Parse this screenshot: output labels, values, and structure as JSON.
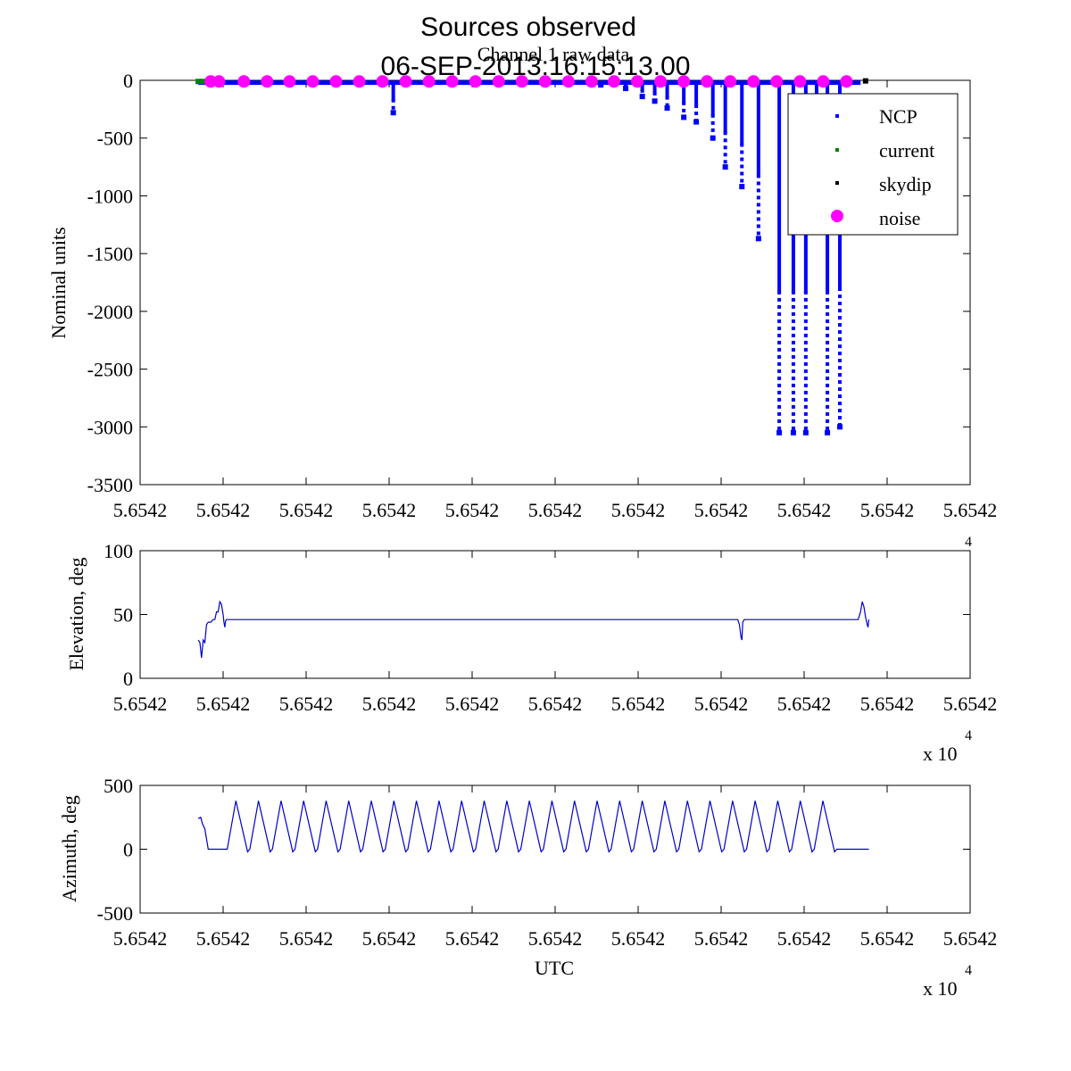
{
  "figure": {
    "title_line1": "Sources observed",
    "title_line2": "06-SEP-2013:16:15:13.00"
  },
  "colors": {
    "ncp": "#0000ff",
    "current": "#008000",
    "skydip": "#000000",
    "noise": "#ff00ff",
    "line": "#0000cc"
  },
  "chart_data": [
    {
      "type": "scatter",
      "title": "Channel 1 raw data",
      "xlabel": "",
      "ylabel": "Nominal units",
      "xlim": [
        0,
        1
      ],
      "ylim": [
        -3500,
        0
      ],
      "xticks": [
        0,
        0.1,
        0.2,
        0.3,
        0.4,
        0.5,
        0.6,
        0.7,
        0.8,
        0.9,
        1.0
      ],
      "xtick_labels": [
        "5.6542",
        "5.6542",
        "5.6542",
        "5.6542",
        "5.6542",
        "5.6542",
        "5.6542",
        "5.6542",
        "5.6542",
        "5.6542",
        "5.6542"
      ],
      "yticks": [
        -3500,
        -3000,
        -2500,
        -2000,
        -1500,
        -1000,
        -500,
        0
      ],
      "ytick_labels": [
        "-3500",
        "-3000",
        "-2500",
        "-2000",
        "-1500",
        "-1000",
        "-500",
        "0"
      ],
      "legend": {
        "position": "top-right",
        "entries": [
          {
            "label": "NCP",
            "series": "ncp"
          },
          {
            "label": "current",
            "series": "current"
          },
          {
            "label": "skydip",
            "series": "skydip"
          },
          {
            "label": "noise",
            "series": "noise"
          }
        ]
      },
      "series": {
        "ncp_base": {
          "x_start": 0.07,
          "x_end": 0.868,
          "y": -20
        },
        "ncp_dips": [
          {
            "x": 0.305,
            "min": -280
          },
          {
            "x": 0.555,
            "min": -40
          },
          {
            "x": 0.585,
            "min": -70
          },
          {
            "x": 0.605,
            "min": -140
          },
          {
            "x": 0.62,
            "min": -180
          },
          {
            "x": 0.635,
            "min": -240
          },
          {
            "x": 0.655,
            "min": -320
          },
          {
            "x": 0.67,
            "min": -360
          },
          {
            "x": 0.69,
            "min": -500
          },
          {
            "x": 0.705,
            "min": -750
          },
          {
            "x": 0.725,
            "min": -920
          },
          {
            "x": 0.745,
            "min": -1370
          },
          {
            "x": 0.77,
            "min": -3050
          },
          {
            "x": 0.787,
            "min": -3050
          },
          {
            "x": 0.802,
            "min": -3050
          },
          {
            "x": 0.815,
            "min": -1000
          },
          {
            "x": 0.828,
            "min": -3050
          },
          {
            "x": 0.843,
            "min": -3000
          }
        ],
        "current": [
          {
            "x": 0.07,
            "y": -10
          },
          {
            "x": 0.075,
            "y": -10
          }
        ],
        "skydip": [
          {
            "x": 0.874,
            "y": -5
          }
        ],
        "noise_x": [
          0.085,
          0.095,
          0.125,
          0.153,
          0.18,
          0.208,
          0.236,
          0.264,
          0.292,
          0.32,
          0.348,
          0.376,
          0.404,
          0.432,
          0.46,
          0.488,
          0.516,
          0.544,
          0.571,
          0.599,
          0.627,
          0.655,
          0.683,
          0.711,
          0.739,
          0.767,
          0.795,
          0.823,
          0.851
        ],
        "noise_y": -10
      }
    },
    {
      "type": "line",
      "xlabel": "",
      "ylabel": "Elevation, deg",
      "xlim": [
        0,
        1
      ],
      "ylim": [
        0,
        100
      ],
      "xticks": [
        0,
        0.1,
        0.2,
        0.3,
        0.4,
        0.5,
        0.6,
        0.7,
        0.8,
        0.9,
        1.0
      ],
      "xtick_labels": [
        "5.6542",
        "5.6542",
        "5.6542",
        "5.6542",
        "5.6542",
        "5.6542",
        "5.6542",
        "5.6542",
        "5.6542",
        "5.6542",
        "5.6542"
      ],
      "yticks": [
        0,
        50,
        100
      ],
      "ytick_labels": [
        "0",
        "50",
        "100"
      ],
      "x_multiplier": "x 10",
      "x_multiplier_exp": "4",
      "top_exponent": "4",
      "series": {
        "x": [
          0.07,
          0.072,
          0.074,
          0.076,
          0.078,
          0.08,
          0.082,
          0.085,
          0.088,
          0.09,
          0.092,
          0.094,
          0.096,
          0.098,
          0.1,
          0.101,
          0.102,
          0.103,
          0.104,
          0.105,
          0.106,
          0.107,
          0.72,
          0.722,
          0.724,
          0.725,
          0.726,
          0.728,
          0.73,
          0.865,
          0.868,
          0.87,
          0.872,
          0.874,
          0.876,
          0.877,
          0.878
        ],
        "y": [
          30,
          28,
          16,
          30,
          28,
          42,
          44,
          44,
          46,
          46,
          52,
          52,
          60,
          58,
          50,
          44,
          40,
          45,
          46,
          46,
          46,
          46,
          46,
          42,
          32,
          30,
          44,
          46,
          46,
          46,
          52,
          60,
          56,
          48,
          42,
          40,
          46
        ]
      }
    },
    {
      "type": "line",
      "xlabel": "UTC",
      "ylabel": "Azimuth, deg",
      "xlim": [
        0,
        1
      ],
      "ylim": [
        -500,
        500
      ],
      "xticks": [
        0,
        0.1,
        0.2,
        0.3,
        0.4,
        0.5,
        0.6,
        0.7,
        0.8,
        0.9,
        1.0
      ],
      "xtick_labels": [
        "5.6542",
        "5.6542",
        "5.6542",
        "5.6542",
        "5.6542",
        "5.6542",
        "5.6542",
        "5.6542",
        "5.6542",
        "5.6542",
        "5.6542"
      ],
      "yticks": [
        -500,
        0,
        500
      ],
      "ytick_labels": [
        "-500",
        "0",
        "500"
      ],
      "x_multiplier": "x 10",
      "x_multiplier_exp": "4",
      "series": {
        "start": [
          {
            "x": 0.07,
            "y": 240
          },
          {
            "x": 0.073,
            "y": 250
          },
          {
            "x": 0.075,
            "y": 200
          },
          {
            "x": 0.078,
            "y": 160
          },
          {
            "x": 0.082,
            "y": 0
          },
          {
            "x": 0.1,
            "y": 0
          },
          {
            "x": 0.105,
            "y": 0
          }
        ],
        "zigzag": {
          "x_start": 0.105,
          "period": 0.0272,
          "cycles": 27,
          "y_high": 380,
          "y_low": -20
        },
        "end": [
          {
            "x": 0.862,
            "y": 0
          },
          {
            "x": 0.878,
            "y": 0
          }
        ]
      }
    }
  ]
}
